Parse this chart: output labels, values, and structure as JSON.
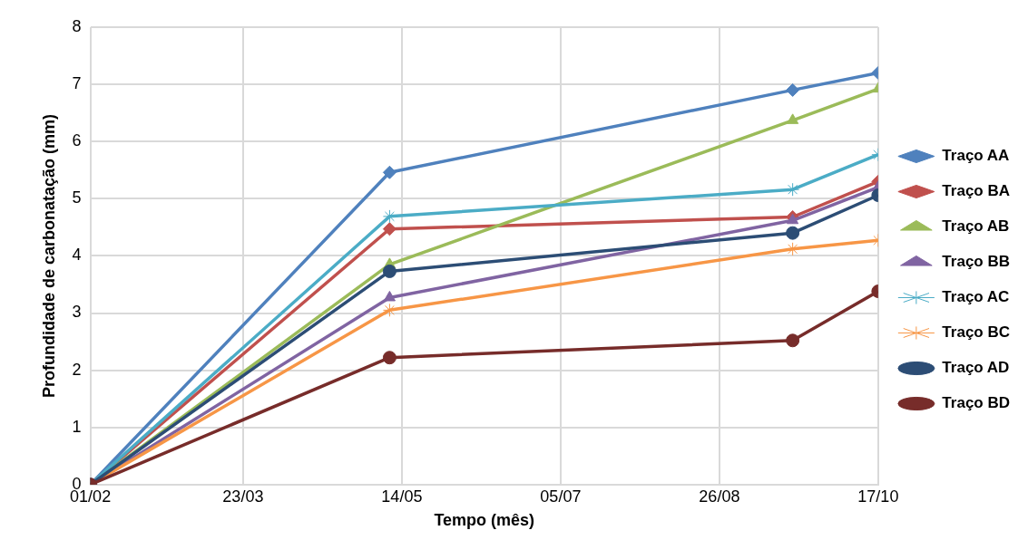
{
  "chart_data": {
    "type": "line",
    "xlabel": "Tempo (mês)",
    "ylabel": "Profundidade de carbonatação (mm)",
    "x": [
      "--02-01",
      "--05-10",
      "--09-19",
      "--10-17"
    ],
    "xlim": [
      "--02-01",
      "--10-17"
    ],
    "xticks": [
      {
        "value": "--02-01",
        "label": "01/02"
      },
      {
        "value": "--03-23",
        "label": "23/03"
      },
      {
        "value": "--05-14",
        "label": "14/05"
      },
      {
        "value": "--07-05",
        "label": "05/07"
      },
      {
        "value": "--08-26",
        "label": "26/08"
      },
      {
        "value": "--10-17",
        "label": "17/10"
      }
    ],
    "ylim": [
      0,
      8
    ],
    "yticks": [
      0,
      1,
      2,
      3,
      4,
      5,
      6,
      7,
      8
    ],
    "grid": true,
    "legend": "right",
    "line_style": "solid",
    "series": [
      {
        "name": "Traço AA",
        "color": "#4f81bd",
        "marker": "diamond",
        "values": [
          0,
          5.46,
          6.9,
          7.2
        ]
      },
      {
        "name": "Traço BA",
        "color": "#c0504d",
        "marker": "diamond",
        "values": [
          0,
          4.47,
          4.68,
          5.3
        ]
      },
      {
        "name": "Traço AB",
        "color": "#9bbb59",
        "marker": "triangle",
        "values": [
          0,
          3.85,
          6.37,
          6.92
        ]
      },
      {
        "name": "Traço BB",
        "color": "#8064a2",
        "marker": "triangle",
        "values": [
          0,
          3.27,
          4.62,
          5.2
        ]
      },
      {
        "name": "Traço AC",
        "color": "#4bacc6",
        "marker": "cross",
        "values": [
          0,
          4.69,
          5.16,
          5.77
        ]
      },
      {
        "name": "Traço BC",
        "color": "#f79646",
        "marker": "cross",
        "values": [
          0,
          3.05,
          4.12,
          4.27
        ]
      },
      {
        "name": "Traço AD",
        "color": "#2c4d75",
        "marker": "circle",
        "values": [
          0,
          3.73,
          4.4,
          5.06
        ]
      },
      {
        "name": "Traço BD",
        "color": "#772c2a",
        "marker": "circle",
        "values": [
          0,
          2.22,
          2.52,
          3.38
        ]
      }
    ]
  }
}
